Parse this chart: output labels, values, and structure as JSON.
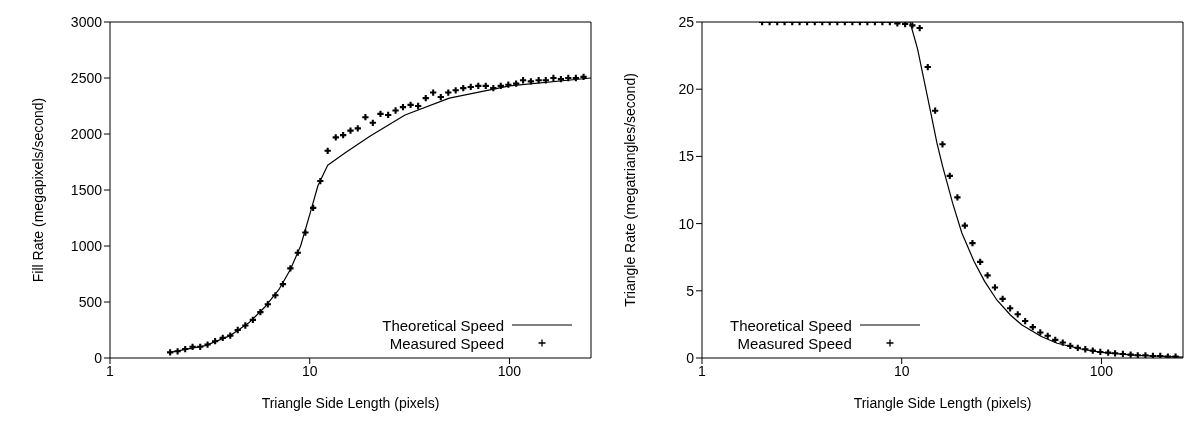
{
  "chart_data": [
    {
      "type": "line",
      "xlabel": "Triangle Side Length (pixels)",
      "ylabel": "Fill Rate (megapixels/second)",
      "log": "x",
      "xlim": [
        1,
        256
      ],
      "xticks": [
        1,
        10,
        100
      ],
      "ylim": [
        0,
        3000
      ],
      "yticks": [
        0,
        500,
        1000,
        1500,
        2000,
        2500,
        3000
      ],
      "legend": "bottom right",
      "grid": false,
      "series": [
        {
          "name": "Theoretical Speed",
          "color": "#000000",
          "marker": "none",
          "line_style": "solid",
          "x": [
            2,
            3,
            4,
            5,
            6,
            7,
            8,
            9,
            10,
            11,
            12.3,
            15,
            20,
            30,
            50,
            100,
            256
          ],
          "values": [
            50,
            110,
            200,
            320,
            460,
            610,
            790,
            1000,
            1280,
            1540,
            1720,
            1830,
            1980,
            2170,
            2320,
            2430,
            2500
          ]
        },
        {
          "name": "Measured Speed",
          "type": "scatter",
          "color": "#000000",
          "marker": "cross",
          "x": [
            2,
            2.18,
            2.38,
            2.59,
            2.83,
            3.08,
            3.36,
            3.67,
            4,
            4.36,
            4.76,
            5.19,
            5.66,
            6.17,
            6.73,
            7.34,
            8,
            8.72,
            9.51,
            10.4,
            11.3,
            12.3,
            13.5,
            14.7,
            16,
            17.4,
            19,
            20.7,
            22.6,
            24.7,
            26.9,
            29.3,
            32,
            34.9,
            38.1,
            41.5,
            45.3,
            49.4,
            53.8,
            58.7,
            64,
            69.8,
            76.1,
            83,
            90.5,
            98.7,
            108,
            117,
            128,
            140,
            152,
            166,
            181,
            197,
            215,
            235
          ],
          "values": [
            50,
            60,
            80,
            100,
            100,
            120,
            150,
            180,
            200,
            250,
            290,
            340,
            410,
            480,
            560,
            660,
            800,
            940,
            1120,
            1340,
            1580,
            1850,
            1970,
            1990,
            2030,
            2050,
            2150,
            2100,
            2180,
            2170,
            2210,
            2240,
            2260,
            2250,
            2320,
            2370,
            2330,
            2370,
            2390,
            2410,
            2420,
            2430,
            2430,
            2410,
            2430,
            2440,
            2450,
            2480,
            2470,
            2480,
            2480,
            2500,
            2490,
            2500,
            2500,
            2510
          ]
        }
      ]
    },
    {
      "type": "line",
      "xlabel": "Triangle Side Length (pixels)",
      "ylabel": "Triangle Rate (megatriangles/second)",
      "log": "x",
      "xlim": [
        1,
        256
      ],
      "xticks": [
        1,
        10,
        100
      ],
      "ylim": [
        0,
        25
      ],
      "yticks": [
        0,
        5,
        10,
        15,
        20,
        25
      ],
      "legend": "bottom left",
      "grid": false,
      "series": [
        {
          "name": "Theoretical Speed",
          "color": "#000000",
          "marker": "none",
          "line_style": "solid",
          "x": [
            2,
            11,
            12,
            13,
            14,
            15,
            16,
            18,
            20,
            23,
            26,
            30,
            35,
            40,
            50,
            60,
            80,
            100,
            150,
            256
          ],
          "values": [
            25,
            25,
            23,
            20.5,
            18.2,
            16,
            14.3,
            11.5,
            9.3,
            7.2,
            5.7,
            4.3,
            3.2,
            2.45,
            1.6,
            1.1,
            0.65,
            0.42,
            0.2,
            0.07
          ]
        },
        {
          "name": "Measured Speed",
          "type": "scatter",
          "color": "#000000",
          "marker": "cross",
          "x": [
            2,
            2.18,
            2.38,
            2.59,
            2.83,
            3.08,
            3.36,
            3.67,
            4,
            4.36,
            4.76,
            5.19,
            5.66,
            6.17,
            6.73,
            7.34,
            8,
            8.72,
            9.51,
            10.4,
            11.3,
            12.3,
            13.5,
            14.7,
            16,
            17.4,
            19,
            20.7,
            22.6,
            24.7,
            26.9,
            29.3,
            32,
            34.9,
            38.1,
            41.5,
            45.3,
            49.4,
            53.8,
            58.7,
            64,
            69.8,
            76.1,
            83,
            90.5,
            98.7,
            108,
            117,
            128,
            140,
            152,
            166,
            181,
            197,
            215,
            235
          ],
          "values": [
            25,
            25,
            25,
            25,
            25,
            25,
            25,
            25,
            25,
            25,
            25,
            25,
            25,
            25,
            25,
            25,
            25,
            25,
            24.9,
            24.85,
            24.75,
            24.55,
            21.65,
            18.4,
            15.9,
            13.55,
            11.95,
            9.85,
            8.55,
            7.15,
            6.15,
            5.25,
            4.4,
            3.7,
            3.25,
            2.75,
            2.3,
            1.9,
            1.65,
            1.35,
            1.15,
            0.9,
            0.75,
            0.65,
            0.55,
            0.45,
            0.4,
            0.35,
            0.3,
            0.25,
            0.2,
            0.2,
            0.15,
            0.15,
            0.1,
            0.1
          ]
        }
      ]
    }
  ]
}
